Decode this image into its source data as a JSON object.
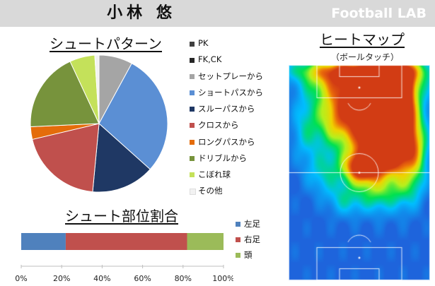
{
  "header": {
    "player_name": "小林 悠",
    "brand": "Football LAB"
  },
  "shot_pattern": {
    "title": "シュートパターン",
    "colors": [
      "#404040",
      "#262626",
      "#a5a5a5",
      "#5b8fd4",
      "#1f3864",
      "#c0504d",
      "#e46c0a",
      "#77933c",
      "#c4e15a",
      "#f2f2f2"
    ],
    "chart_data": {
      "type": "pie",
      "categories": [
        "PK",
        "FK,CK",
        "セットプレーから",
        "ショートパスから",
        "スルーパスから",
        "クロスから",
        "ロングパスから",
        "ドリブルから",
        "こぼれ球",
        "その他"
      ],
      "values": [
        0,
        0,
        8,
        29,
        15,
        20,
        3,
        19,
        6,
        1
      ]
    }
  },
  "shot_part": {
    "title": "シュート部位割合",
    "colors": [
      "#4f81bd",
      "#c0504d",
      "#9bbb59"
    ],
    "chart_data": {
      "type": "bar",
      "orientation": "horizontal",
      "stacked": true,
      "categories": [
        "左足",
        "右足",
        "頭"
      ],
      "values": [
        22,
        60,
        18
      ],
      "xlim": [
        0,
        100
      ],
      "ticks": [
        "0%",
        "20%",
        "40%",
        "60%",
        "80%",
        "100%"
      ]
    }
  },
  "heatmap": {
    "title": "ヒートマップ",
    "subtitle": "（ボールタッチ）"
  }
}
